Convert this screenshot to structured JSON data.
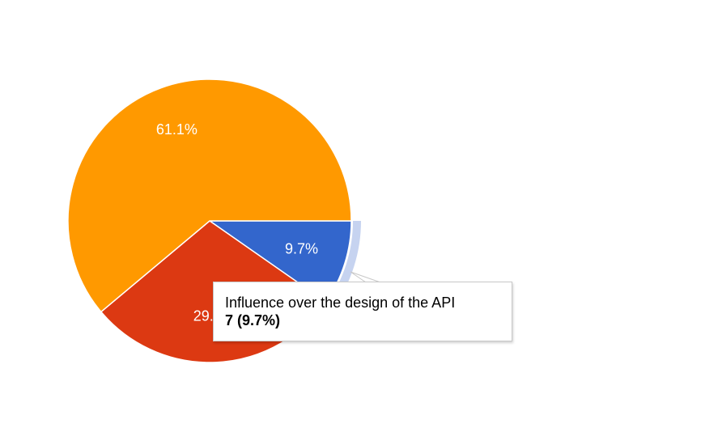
{
  "chart_data": {
    "type": "pie",
    "slices": [
      {
        "value": 9.7,
        "label": "9.7%",
        "color": "#3366cc",
        "highlighted": true
      },
      {
        "value": 29.2,
        "label": "29.2%",
        "color": "#dc3912"
      },
      {
        "value": 61.1,
        "label": "61.1%",
        "color": "#ff9900"
      }
    ],
    "highlight_color": "#c6d3f0"
  },
  "tooltip": {
    "title": "Influence over the design of the API",
    "value": "7 (9.7%)"
  }
}
